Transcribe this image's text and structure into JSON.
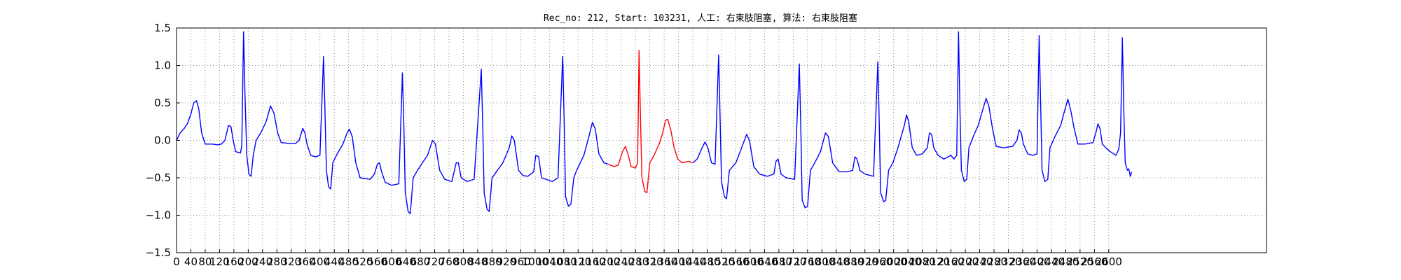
{
  "chart_data": {
    "type": "line",
    "title": "Rec_no: 212, Start: 103231, 人工: 右束肢阻塞, 算法: 右束肢阻塞",
    "xlabel": "",
    "ylabel": "",
    "xlim": [
      0,
      3040
    ],
    "ylim": [
      -1.5,
      1.5
    ],
    "grid": true,
    "x_ticks": [
      0,
      40,
      80,
      120,
      160,
      200,
      240,
      280,
      320,
      360,
      400,
      440,
      480,
      520,
      560,
      600,
      640,
      680,
      720,
      760,
      800,
      840,
      880,
      920,
      960,
      1000,
      1040,
      1080,
      1120,
      1160,
      1200,
      1240,
      1280,
      1320,
      1360,
      1400,
      1440,
      1480,
      1520,
      1560,
      1600,
      1640,
      1680,
      1720,
      1760,
      1800,
      1840,
      1880,
      1920,
      1960,
      2000,
      2040,
      2080,
      2120,
      2160,
      2200,
      2240,
      2280,
      2320,
      2360,
      2400,
      2440,
      2480,
      2520,
      2560,
      2600
    ],
    "y_ticks": [
      -1.5,
      -1.0,
      -0.5,
      0.0,
      0.5,
      1.0,
      1.5
    ],
    "y_tick_labels": [
      "−1.5",
      "−1.0",
      "−0.5",
      "0.0",
      "0.5",
      "1.0",
      "1.5"
    ],
    "colors": {
      "signal": "#0000ff",
      "highlight": "#ff0000"
    },
    "highlight_range": [
      1205,
      1440
    ],
    "beats": [
      37,
      187,
      410,
      630,
      850,
      1077,
      1290,
      1512,
      1737,
      1956,
      2181,
      2406,
      2638
    ],
    "series": [
      {
        "values": [
          [
            0,
            0.0
          ],
          [
            10,
            0.1
          ],
          [
            20,
            0.15
          ],
          [
            30,
            0.22
          ],
          [
            40,
            0.35
          ],
          [
            48,
            0.5
          ],
          [
            56,
            0.53
          ],
          [
            62,
            0.42
          ],
          [
            70,
            0.1
          ],
          [
            80,
            -0.05
          ],
          [
            100,
            -0.05
          ],
          [
            115,
            -0.06
          ],
          [
            125,
            -0.05
          ],
          [
            135,
            0.0
          ],
          [
            145,
            0.2
          ],
          [
            152,
            0.18
          ],
          [
            158,
            0.0
          ],
          [
            165,
            -0.15
          ],
          [
            178,
            -0.17
          ],
          [
            182,
            -0.08
          ],
          [
            187,
            1.45
          ],
          [
            191,
            0.6
          ],
          [
            196,
            -0.2
          ],
          [
            202,
            -0.45
          ],
          [
            208,
            -0.48
          ],
          [
            214,
            -0.2
          ],
          [
            222,
            0.0
          ],
          [
            235,
            0.1
          ],
          [
            250,
            0.25
          ],
          [
            262,
            0.46
          ],
          [
            272,
            0.36
          ],
          [
            282,
            0.1
          ],
          [
            292,
            -0.03
          ],
          [
            312,
            -0.04
          ],
          [
            332,
            -0.04
          ],
          [
            342,
            0.0
          ],
          [
            352,
            0.16
          ],
          [
            358,
            0.1
          ],
          [
            364,
            -0.05
          ],
          [
            374,
            -0.2
          ],
          [
            388,
            -0.22
          ],
          [
            400,
            -0.2
          ],
          [
            410,
            1.12
          ],
          [
            414,
            0.4
          ],
          [
            418,
            -0.4
          ],
          [
            424,
            -0.62
          ],
          [
            430,
            -0.65
          ],
          [
            436,
            -0.3
          ],
          [
            446,
            -0.2
          ],
          [
            464,
            -0.05
          ],
          [
            476,
            0.1
          ],
          [
            482,
            0.15
          ],
          [
            490,
            0.05
          ],
          [
            500,
            -0.3
          ],
          [
            512,
            -0.5
          ],
          [
            540,
            -0.52
          ],
          [
            552,
            -0.45
          ],
          [
            560,
            -0.32
          ],
          [
            566,
            -0.3
          ],
          [
            572,
            -0.42
          ],
          [
            582,
            -0.56
          ],
          [
            600,
            -0.6
          ],
          [
            620,
            -0.58
          ],
          [
            630,
            0.9
          ],
          [
            634,
            0.2
          ],
          [
            638,
            -0.7
          ],
          [
            646,
            -0.95
          ],
          [
            652,
            -0.98
          ],
          [
            660,
            -0.5
          ],
          [
            672,
            -0.4
          ],
          [
            700,
            -0.2
          ],
          [
            714,
            0.0
          ],
          [
            722,
            -0.05
          ],
          [
            734,
            -0.4
          ],
          [
            748,
            -0.52
          ],
          [
            768,
            -0.55
          ],
          [
            780,
            -0.3
          ],
          [
            786,
            -0.3
          ],
          [
            794,
            -0.5
          ],
          [
            810,
            -0.55
          ],
          [
            830,
            -0.52
          ],
          [
            850,
            0.95
          ],
          [
            854,
            0.2
          ],
          [
            858,
            -0.7
          ],
          [
            866,
            -0.92
          ],
          [
            872,
            -0.95
          ],
          [
            880,
            -0.5
          ],
          [
            892,
            -0.42
          ],
          [
            910,
            -0.3
          ],
          [
            928,
            -0.1
          ],
          [
            935,
            0.06
          ],
          [
            942,
            0.0
          ],
          [
            954,
            -0.4
          ],
          [
            966,
            -0.47
          ],
          [
            980,
            -0.48
          ],
          [
            996,
            -0.42
          ],
          [
            1002,
            -0.2
          ],
          [
            1010,
            -0.22
          ],
          [
            1018,
            -0.5
          ],
          [
            1030,
            -0.52
          ],
          [
            1048,
            -0.55
          ],
          [
            1064,
            -0.5
          ],
          [
            1077,
            1.12
          ],
          [
            1081,
            0.3
          ],
          [
            1085,
            -0.75
          ],
          [
            1093,
            -0.88
          ],
          [
            1100,
            -0.85
          ],
          [
            1108,
            -0.5
          ],
          [
            1116,
            -0.4
          ],
          [
            1136,
            -0.2
          ],
          [
            1150,
            0.05
          ],
          [
            1160,
            0.24
          ],
          [
            1168,
            0.15
          ],
          [
            1178,
            -0.18
          ],
          [
            1192,
            -0.3
          ],
          [
            1205,
            -0.32
          ],
          [
            1220,
            -0.35
          ],
          [
            1232,
            -0.33
          ],
          [
            1244,
            -0.15
          ],
          [
            1252,
            -0.08
          ],
          [
            1260,
            -0.2
          ],
          [
            1268,
            -0.35
          ],
          [
            1280,
            -0.37
          ],
          [
            1286,
            -0.3
          ],
          [
            1290,
            1.2
          ],
          [
            1294,
            0.3
          ],
          [
            1298,
            -0.5
          ],
          [
            1306,
            -0.68
          ],
          [
            1312,
            -0.7
          ],
          [
            1320,
            -0.3
          ],
          [
            1332,
            -0.2
          ],
          [
            1346,
            -0.05
          ],
          [
            1356,
            0.1
          ],
          [
            1364,
            0.27
          ],
          [
            1370,
            0.28
          ],
          [
            1378,
            0.15
          ],
          [
            1388,
            -0.1
          ],
          [
            1398,
            -0.25
          ],
          [
            1410,
            -0.3
          ],
          [
            1428,
            -0.28
          ],
          [
            1440,
            -0.3
          ],
          [
            1452,
            -0.25
          ],
          [
            1466,
            -0.1
          ],
          [
            1474,
            -0.02
          ],
          [
            1482,
            -0.1
          ],
          [
            1492,
            -0.3
          ],
          [
            1502,
            -0.32
          ],
          [
            1512,
            1.14
          ],
          [
            1516,
            0.3
          ],
          [
            1520,
            -0.55
          ],
          [
            1528,
            -0.75
          ],
          [
            1534,
            -0.78
          ],
          [
            1542,
            -0.4
          ],
          [
            1560,
            -0.3
          ],
          [
            1576,
            -0.1
          ],
          [
            1590,
            0.08
          ],
          [
            1598,
            0.0
          ],
          [
            1610,
            -0.35
          ],
          [
            1626,
            -0.45
          ],
          [
            1648,
            -0.48
          ],
          [
            1666,
            -0.45
          ],
          [
            1672,
            -0.28
          ],
          [
            1678,
            -0.25
          ],
          [
            1686,
            -0.45
          ],
          [
            1700,
            -0.5
          ],
          [
            1724,
            -0.52
          ],
          [
            1737,
            1.02
          ],
          [
            1741,
            0.2
          ],
          [
            1745,
            -0.8
          ],
          [
            1753,
            -0.9
          ],
          [
            1760,
            -0.88
          ],
          [
            1768,
            -0.4
          ],
          [
            1780,
            -0.3
          ],
          [
            1796,
            -0.15
          ],
          [
            1810,
            0.1
          ],
          [
            1818,
            0.05
          ],
          [
            1830,
            -0.3
          ],
          [
            1848,
            -0.42
          ],
          [
            1870,
            -0.42
          ],
          [
            1886,
            -0.4
          ],
          [
            1892,
            -0.22
          ],
          [
            1898,
            -0.25
          ],
          [
            1906,
            -0.4
          ],
          [
            1920,
            -0.45
          ],
          [
            1944,
            -0.48
          ],
          [
            1956,
            1.05
          ],
          [
            1960,
            0.2
          ],
          [
            1964,
            -0.7
          ],
          [
            1972,
            -0.82
          ],
          [
            1978,
            -0.8
          ],
          [
            1986,
            -0.4
          ],
          [
            1998,
            -0.3
          ],
          [
            2012,
            -0.1
          ],
          [
            2030,
            0.2
          ],
          [
            2036,
            0.34
          ],
          [
            2042,
            0.25
          ],
          [
            2052,
            -0.1
          ],
          [
            2064,
            -0.2
          ],
          [
            2080,
            -0.18
          ],
          [
            2094,
            -0.1
          ],
          [
            2100,
            0.1
          ],
          [
            2106,
            0.08
          ],
          [
            2112,
            -0.1
          ],
          [
            2124,
            -0.2
          ],
          [
            2140,
            -0.25
          ],
          [
            2160,
            -0.2
          ],
          [
            2168,
            -0.25
          ],
          [
            2176,
            -0.2
          ],
          [
            2181,
            1.45
          ],
          [
            2185,
            0.4
          ],
          [
            2189,
            -0.4
          ],
          [
            2197,
            -0.55
          ],
          [
            2204,
            -0.52
          ],
          [
            2210,
            -0.1
          ],
          [
            2222,
            0.05
          ],
          [
            2236,
            0.2
          ],
          [
            2248,
            0.4
          ],
          [
            2258,
            0.56
          ],
          [
            2266,
            0.45
          ],
          [
            2276,
            0.15
          ],
          [
            2286,
            -0.08
          ],
          [
            2306,
            -0.1
          ],
          [
            2332,
            -0.08
          ],
          [
            2344,
            0.0
          ],
          [
            2350,
            0.14
          ],
          [
            2356,
            0.1
          ],
          [
            2362,
            -0.05
          ],
          [
            2374,
            -0.18
          ],
          [
            2388,
            -0.2
          ],
          [
            2400,
            -0.18
          ],
          [
            2406,
            1.4
          ],
          [
            2410,
            0.5
          ],
          [
            2414,
            -0.4
          ],
          [
            2422,
            -0.55
          ],
          [
            2430,
            -0.52
          ],
          [
            2436,
            -0.1
          ],
          [
            2450,
            0.05
          ],
          [
            2466,
            0.2
          ],
          [
            2476,
            0.38
          ],
          [
            2486,
            0.55
          ],
          [
            2494,
            0.4
          ],
          [
            2504,
            0.15
          ],
          [
            2514,
            -0.05
          ],
          [
            2534,
            -0.05
          ],
          [
            2556,
            -0.03
          ],
          [
            2564,
            0.1
          ],
          [
            2570,
            0.22
          ],
          [
            2576,
            0.15
          ],
          [
            2582,
            -0.05
          ],
          [
            2592,
            -0.1
          ],
          [
            2604,
            -0.15
          ],
          [
            2620,
            -0.2
          ],
          [
            2628,
            -0.12
          ],
          [
            2633,
            0.1
          ],
          [
            2638,
            1.37
          ],
          [
            2642,
            0.4
          ],
          [
            2646,
            -0.3
          ],
          [
            2652,
            -0.4
          ],
          [
            2656,
            -0.38
          ],
          [
            2660,
            -0.48
          ],
          [
            2664,
            -0.42
          ]
        ]
      }
    ]
  }
}
